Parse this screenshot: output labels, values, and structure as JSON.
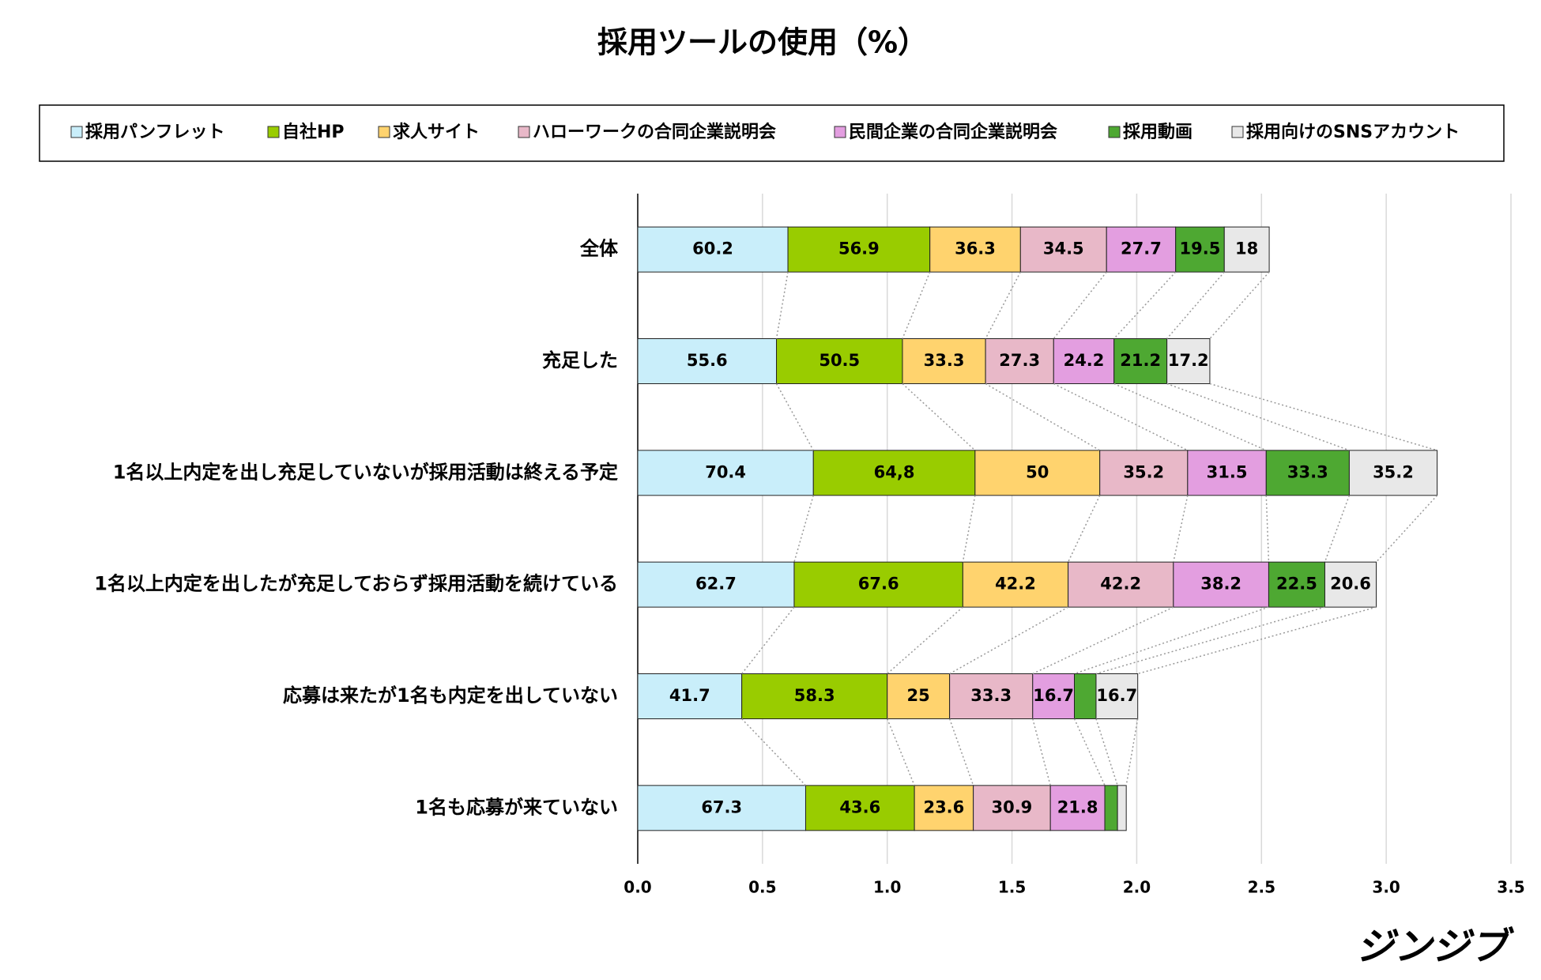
{
  "chart_data": {
    "type": "stacked_barh",
    "title": "採用ツールの使用（%）",
    "logo": "ジンジブ",
    "categories": [
      "全体",
      "充足した",
      "1名以上内定を出し充足していないが採用活動は終える予定",
      "1名以上内定を出したが充足しておらず採用活動を続けている",
      "応募は来たが1名も内定を出していない",
      "1名も応募が来ていない"
    ],
    "series": [
      {
        "name": "採用パンフレット",
        "color": "#c9eefa",
        "values": [
          0.602,
          0.556,
          0.704,
          0.627,
          0.417,
          0.673
        ],
        "value_labels": [
          "60.2",
          "55.6",
          "70.4",
          "62.7",
          "41.7",
          "67.3"
        ]
      },
      {
        "name": "自社HP",
        "color": "#99cc00",
        "values": [
          0.569,
          0.505,
          0.648,
          0.676,
          0.583,
          0.436
        ],
        "value_labels": [
          "56.9",
          "50.5",
          "64,8",
          "67.6",
          "58.3",
          "43.6"
        ]
      },
      {
        "name": "求人サイト",
        "color": "#ffd36e",
        "values": [
          0.363,
          0.333,
          0.5,
          0.422,
          0.25,
          0.236
        ],
        "value_labels": [
          "36.3",
          "33.3",
          "50",
          "42.2",
          "25",
          "23.6"
        ]
      },
      {
        "name": "ハローワークの合同企業説明会",
        "color": "#e8b8c8",
        "values": [
          0.345,
          0.273,
          0.352,
          0.422,
          0.333,
          0.309
        ],
        "value_labels": [
          "34.5",
          "27.3",
          "35.2",
          "42.2",
          "33.3",
          "30.9"
        ]
      },
      {
        "name": "民間企業の合同企業説明会",
        "color": "#e39ee0",
        "values": [
          0.277,
          0.242,
          0.315,
          0.382,
          0.167,
          0.218
        ],
        "value_labels": [
          "27.7",
          "24.2",
          "31.5",
          "38.2",
          "16.7",
          "21.8"
        ]
      },
      {
        "name": "採用動画",
        "color": "#4ea832",
        "values": [
          0.195,
          0.212,
          0.333,
          0.225,
          0.087,
          0.051
        ],
        "value_labels": [
          "19.5",
          "21.2",
          "33.3",
          "22.5",
          null,
          null
        ]
      },
      {
        "name": "採用向けのSNSアカウント",
        "color": "#e8e8e8",
        "values": [
          0.18,
          0.172,
          0.352,
          0.206,
          0.167,
          0.035
        ],
        "value_labels": [
          "18",
          "17.2",
          "35.2",
          "20.6",
          "16.7",
          null
        ]
      }
    ],
    "xlim": [
      0,
      3.5
    ],
    "xticks": [
      {
        "value": 0,
        "label": "0.0"
      },
      0.5,
      {
        "value": 1,
        "label": "1.0"
      },
      1.5,
      {
        "value": 2,
        "label": "2.0"
      },
      2.5,
      {
        "value": 3,
        "label": "3.0"
      },
      3.5
    ],
    "grid": true
  }
}
